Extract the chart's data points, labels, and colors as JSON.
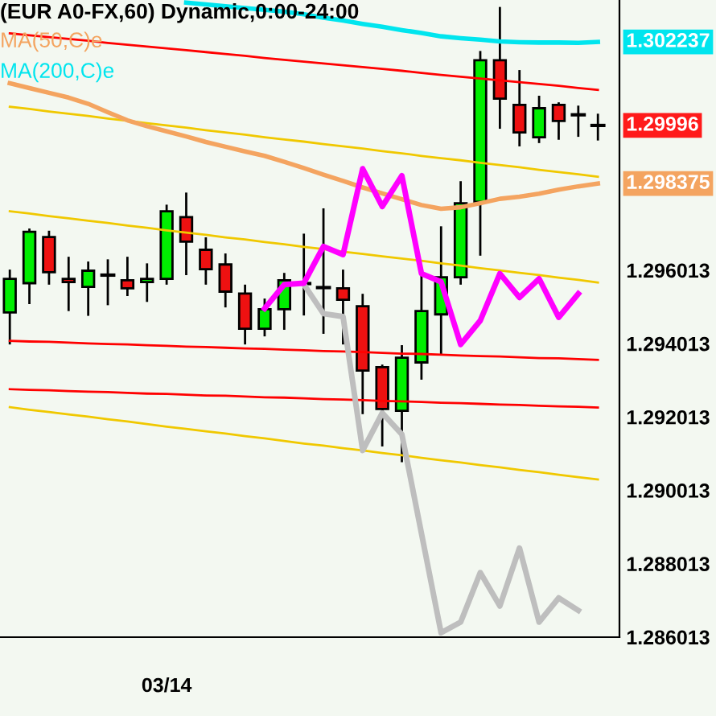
{
  "chart_data": {
    "type": "candlestick",
    "title": "(EUR A0-FX,60) Dynamic,0:00-24:00",
    "categories": [
      null,
      null,
      null,
      null,
      null,
      null,
      null,
      null,
      "03/14",
      null,
      null,
      null,
      null,
      null,
      null,
      null,
      null,
      null,
      null,
      null,
      null,
      null,
      null,
      null,
      null,
      null,
      null,
      null,
      null,
      null,
      null
    ],
    "ohlc": [
      [
        1.29486,
        1.296,
        1.29402,
        1.29578
      ],
      [
        1.29566,
        1.29712,
        1.29512,
        1.29706
      ],
      [
        1.29692,
        1.29706,
        1.29565,
        1.29596
      ],
      [
        1.29578,
        1.29635,
        1.29493,
        1.29569
      ],
      [
        1.29556,
        1.29622,
        1.2948,
        1.296
      ],
      [
        1.29588,
        1.29628,
        1.29509,
        1.29588
      ],
      [
        1.29574,
        1.29635,
        1.29534,
        1.29552
      ],
      [
        1.29569,
        1.29617,
        1.29518,
        1.29578
      ],
      [
        1.29578,
        1.29777,
        1.29565,
        1.29762
      ],
      [
        1.29746,
        1.2981,
        1.29591,
        1.29679
      ],
      [
        1.29657,
        1.29688,
        1.29565,
        1.29604
      ],
      [
        1.29617,
        1.29644,
        1.29503,
        1.29543
      ],
      [
        1.29538,
        1.29559,
        1.29402,
        1.29442
      ],
      [
        1.29442,
        1.29521,
        1.29424,
        1.29495
      ],
      [
        1.29495,
        1.29591,
        1.29442,
        1.29574
      ],
      [
        1.29565,
        1.29698,
        1.29481,
        1.29565
      ],
      [
        1.29554,
        1.29767,
        1.29431,
        1.29554
      ],
      [
        1.29552,
        1.296,
        1.29402,
        1.29521
      ],
      [
        1.29503,
        1.29534,
        1.29212,
        1.29328
      ],
      [
        1.29337,
        1.29341,
        1.29124,
        1.29223
      ],
      [
        1.29218,
        1.29394,
        1.29081,
        1.29363
      ],
      [
        1.2935,
        1.29585,
        1.29306,
        1.2949
      ],
      [
        1.29481,
        1.29718,
        1.29372,
        1.29582
      ],
      [
        1.29582,
        1.29841,
        1.29565,
        1.29784
      ],
      [
        1.29788,
        1.30196,
        1.29644,
        1.30174
      ],
      [
        1.30174,
        1.30316,
        1.2999,
        1.30069
      ],
      [
        1.30052,
        1.30144,
        1.29942,
        1.29977
      ],
      [
        1.29964,
        1.30074,
        1.29951,
        1.30043
      ],
      [
        1.30052,
        1.30056,
        1.2996,
        1.30008
      ],
      [
        1.30025,
        1.30047,
        1.29968,
        1.30025
      ],
      [
        1.29996,
        1.30025,
        1.29958,
        1.29996
      ]
    ],
    "colors": [
      "#00ee00",
      "#00ee00",
      "#ee1111",
      "#ee1111",
      "#00ee00",
      "#000000",
      "#ee1111",
      "#00ee00",
      "#00ee00",
      "#ee1111",
      "#ee1111",
      "#ee1111",
      "#ee1111",
      "#00ee00",
      "#00ee00",
      "#000000",
      "#000000",
      "#ee1111",
      "#ee1111",
      "#ee1111",
      "#00ee00",
      "#00ee00",
      "#00ee00",
      "#00ee00",
      "#00ee00",
      "#ee1111",
      "#ee1111",
      "#00ee00",
      "#ee1111",
      "#000000",
      "#000000"
    ],
    "series": [
      {
        "type": "line",
        "color": "#f0c800",
        "values": [
          1.30047,
          1.30041,
          1.30034,
          1.30028,
          1.30022,
          1.30015,
          1.30009,
          1.30002,
          1.29996,
          1.2999,
          1.29983,
          1.29977,
          1.29971,
          1.29964,
          1.29958,
          1.29952,
          1.29945,
          1.29939,
          1.29933,
          1.29926,
          1.2992,
          1.29913,
          1.29907,
          1.29901,
          1.29894,
          1.29888,
          1.29882,
          1.29875,
          1.29869,
          1.29863,
          1.29856
        ]
      },
      {
        "type": "line",
        "color": "#f0c800",
        "values": [
          1.29762,
          1.29756,
          1.29749,
          1.29743,
          1.29736,
          1.2973,
          1.29723,
          1.29717,
          1.2971,
          1.29704,
          1.29698,
          1.29691,
          1.29685,
          1.29678,
          1.29672,
          1.29665,
          1.29659,
          1.29652,
          1.29646,
          1.29639,
          1.29633,
          1.29627,
          1.2962,
          1.29614,
          1.29607,
          1.29601,
          1.29594,
          1.29588,
          1.29581,
          1.29575,
          1.29568
        ]
      },
      {
        "type": "line",
        "color": "#f0c800",
        "values": [
          1.29228,
          1.29221,
          1.29215,
          1.29208,
          1.29202,
          1.29195,
          1.29189,
          1.29182,
          1.29175,
          1.29169,
          1.29162,
          1.29156,
          1.29149,
          1.29143,
          1.29136,
          1.29129,
          1.29123,
          1.29116,
          1.2911,
          1.29103,
          1.29097,
          1.2909,
          1.29083,
          1.29077,
          1.2907,
          1.29064,
          1.29057,
          1.29051,
          1.29044,
          1.29037,
          1.29031
        ]
      },
      {
        "type": "line",
        "color": "#ff0000",
        "values": [
          1.30247,
          1.30242,
          1.30237,
          1.30232,
          1.30227,
          1.30221,
          1.30216,
          1.30211,
          1.30206,
          1.30201,
          1.30196,
          1.30191,
          1.30186,
          1.3018,
          1.30175,
          1.3017,
          1.30165,
          1.3016,
          1.30155,
          1.3015,
          1.30145,
          1.30139,
          1.30134,
          1.30129,
          1.30124,
          1.30119,
          1.30114,
          1.30109,
          1.30104,
          1.30098,
          1.30093
        ]
      },
      {
        "type": "line",
        "color": "#ff0000",
        "values": [
          1.29409,
          1.29407,
          1.29406,
          1.29404,
          1.29402,
          1.294,
          1.29399,
          1.29397,
          1.29395,
          1.29393,
          1.29392,
          1.2939,
          1.29388,
          1.29387,
          1.29385,
          1.29383,
          1.29381,
          1.2938,
          1.29378,
          1.29376,
          1.29374,
          1.29373,
          1.29371,
          1.29369,
          1.29367,
          1.29366,
          1.29364,
          1.29362,
          1.29361,
          1.29359,
          1.29357
        ]
      },
      {
        "type": "line",
        "color": "#ff0000",
        "values": [
          1.29277,
          1.29275,
          1.29274,
          1.29272,
          1.2927,
          1.29269,
          1.29267,
          1.29265,
          1.29264,
          1.29262,
          1.2926,
          1.29259,
          1.29257,
          1.29255,
          1.29254,
          1.29252,
          1.2925,
          1.29249,
          1.29247,
          1.29245,
          1.29244,
          1.29242,
          1.2924,
          1.29239,
          1.29237,
          1.29235,
          1.29234,
          1.29232,
          1.2923,
          1.29229,
          1.29227
        ]
      },
      {
        "type": "line",
        "name": "MA(50,C)e",
        "color": "#f4a460",
        "values": [
          1.30111,
          1.30098,
          1.30085,
          1.30072,
          1.30055,
          1.30032,
          1.3001,
          1.29994,
          1.2998,
          1.29966,
          1.29951,
          1.29938,
          1.29925,
          1.29913,
          1.29897,
          1.2988,
          1.29862,
          1.29845,
          1.29827,
          1.29811,
          1.29795,
          1.29779,
          1.29769,
          1.29773,
          1.29784,
          1.29796,
          1.29802,
          1.2981,
          1.29821,
          1.2983,
          1.298375
        ],
        "value_labels": [
          null,
          null,
          null,
          null,
          null,
          null,
          null,
          null,
          null,
          null,
          null,
          null,
          null,
          null,
          null,
          null,
          null,
          null,
          null,
          null,
          null,
          null,
          null,
          null,
          null,
          null,
          null,
          null,
          null,
          null,
          "1.298375"
        ]
      },
      {
        "type": "line",
        "name": "MA(200,C)e",
        "color": "#00e5ee",
        "values": [
          null,
          null,
          null,
          null,
          null,
          null,
          null,
          null,
          null,
          1.30331,
          1.30326,
          1.30321,
          1.30316,
          1.30311,
          1.30306,
          1.30299,
          1.3029,
          1.30282,
          1.30273,
          1.30265,
          1.30256,
          1.30248,
          1.30239,
          1.30234,
          1.3023,
          1.30225,
          1.30223,
          1.30222,
          1.30222,
          1.30221,
          1.302237
        ],
        "value_labels": [
          null,
          null,
          null,
          null,
          null,
          null,
          null,
          null,
          null,
          null,
          null,
          null,
          null,
          null,
          null,
          null,
          null,
          null,
          null,
          null,
          null,
          null,
          null,
          null,
          null,
          null,
          null,
          null,
          null,
          null,
          "1.302237"
        ]
      },
      {
        "type": "line",
        "color": "#bebebe",
        "values": [
          null,
          null,
          null,
          null,
          null,
          null,
          null,
          null,
          null,
          null,
          null,
          null,
          null,
          null,
          null,
          1.29563,
          1.29483,
          1.29475,
          1.2911,
          1.29212,
          1.29154,
          1.28884,
          1.28613,
          1.28642,
          1.28777,
          1.28686,
          1.28844,
          1.28642,
          1.28708,
          1.28674,
          null
        ]
      },
      {
        "type": "line",
        "color": "#ff00ff",
        "values": [
          null,
          null,
          null,
          null,
          null,
          null,
          null,
          null,
          null,
          null,
          null,
          null,
          null,
          1.29497,
          1.29562,
          1.29566,
          1.29666,
          1.29644,
          1.29878,
          1.29775,
          1.29859,
          1.29592,
          1.2957,
          1.29399,
          1.29464,
          1.29592,
          1.29527,
          1.29578,
          1.29473,
          1.29537,
          null
        ]
      }
    ],
    "value_labels": [
      null,
      null,
      null,
      null,
      null,
      null,
      null,
      null,
      null,
      null,
      null,
      null,
      null,
      null,
      null,
      null,
      null,
      null,
      null,
      null,
      null,
      null,
      null,
      null,
      null,
      null,
      null,
      null,
      null,
      null,
      "1.29996"
    ],
    "ylim": [
      1.28601,
      1.30338
    ],
    "yticks": [
      1.286013,
      1.288013,
      1.290013,
      1.292013,
      1.294013,
      1.296013
    ],
    "grid": false,
    "legend": "top left"
  }
}
